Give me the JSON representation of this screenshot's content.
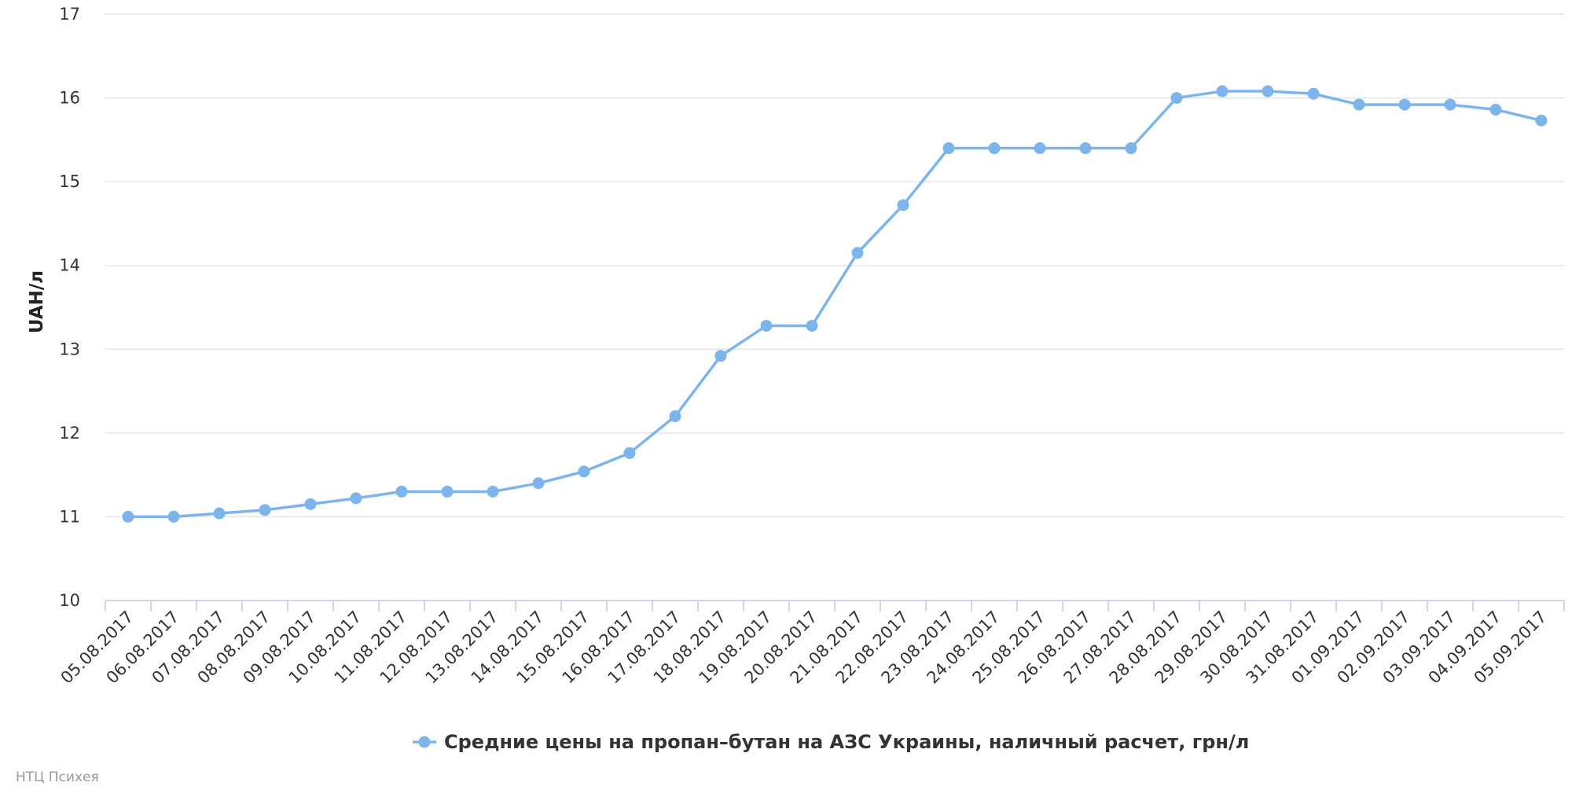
{
  "credit": "НТЦ Психея",
  "colors": {
    "series": "#7cb5ec",
    "grid": "#e6e6e6",
    "axis": "#ccd6eb"
  },
  "chart_data": {
    "type": "line",
    "ylabel": "UAH/л",
    "ylim": [
      10,
      17
    ],
    "yticks": [
      10,
      11,
      12,
      13,
      14,
      15,
      16,
      17
    ],
    "grid": true,
    "legend_position": "bottom-center",
    "categories": [
      "05.08.2017",
      "06.08.2017",
      "07.08.2017",
      "08.08.2017",
      "09.08.2017",
      "10.08.2017",
      "11.08.2017",
      "12.08.2017",
      "13.08.2017",
      "14.08.2017",
      "15.08.2017",
      "16.08.2017",
      "17.08.2017",
      "18.08.2017",
      "19.08.2017",
      "20.08.2017",
      "21.08.2017",
      "22.08.2017",
      "23.08.2017",
      "24.08.2017",
      "25.08.2017",
      "26.08.2017",
      "27.08.2017",
      "28.08.2017",
      "29.08.2017",
      "30.08.2017",
      "31.08.2017",
      "01.09.2017",
      "02.09.2017",
      "03.09.2017",
      "04.09.2017",
      "05.09.2017"
    ],
    "series": [
      {
        "name": "Средние цены на пропан–бутан на АЗС Украины, наличный расчет, грн/л",
        "values": [
          11.0,
          11.0,
          11.04,
          11.08,
          11.15,
          11.22,
          11.3,
          11.3,
          11.3,
          11.4,
          11.54,
          11.76,
          12.2,
          12.92,
          13.28,
          13.28,
          14.15,
          14.72,
          15.4,
          15.4,
          15.4,
          15.4,
          15.4,
          16.0,
          16.08,
          16.08,
          16.05,
          15.92,
          15.92,
          15.92,
          15.86,
          15.73
        ]
      }
    ]
  }
}
